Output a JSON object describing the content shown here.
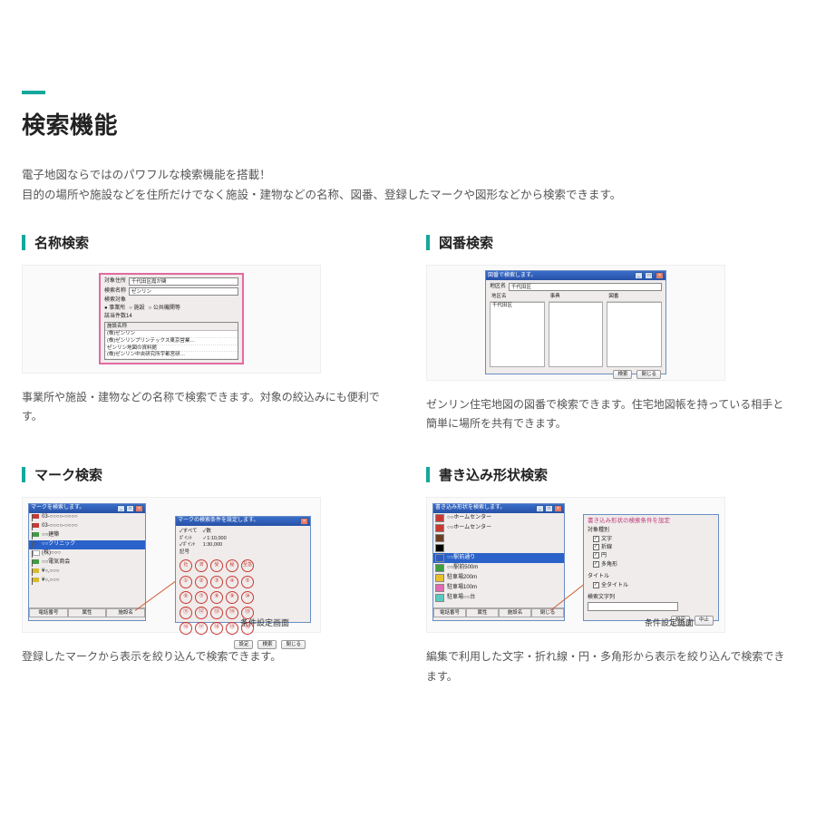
{
  "page": {
    "accent_color": "#14a89c",
    "title": "検索機能",
    "intro_line1": "電子地図ならではのパワフルな検索機能を搭載！",
    "intro_line2": "目的の場所や施設などを住所だけでなく施設・建物などの名称、図番、登録したマークや図形などから検索できます。"
  },
  "features": [
    {
      "title": "名称検索",
      "desc": "事業所や施設・建物などの名称で検索できます。対象の絞込みにも便利です。"
    },
    {
      "title": "図番検索",
      "desc": "ゼンリン住宅地図の図番で検索できます。住宅地図帳を持っている相手と簡単に場所を共有できます。"
    },
    {
      "title": "マーク検索",
      "desc": "登録したマークから表示を絞り込んで検索できます。"
    },
    {
      "title": "書き込み形状検索",
      "desc": "編集で利用した文字・折れ線・円・多角形から表示を絞り込んで検索できます。"
    }
  ],
  "f1": {
    "labels": {
      "target": "対象住所",
      "target_val": "千代田区霞が関",
      "name": "検索名称",
      "name_val": "ゼンリン",
      "type": "検索対象",
      "result_count": "該当件数14",
      "col_header": "施設名称",
      "radio_biz": "● 事業所",
      "radio_fac": "○ 施設",
      "radio_pub": "○ 公共機関等"
    },
    "results": [
      "(株)ゼンリン",
      "(株)ゼンリンプリンテックス東京営業…",
      "ゼンリン地図の資料館",
      "(株)ゼンリン中央研究所宇都宮研…"
    ]
  },
  "f2": {
    "title": "図番で検索します。",
    "area_label": "地区名",
    "area_val": "千代田区",
    "col1": "地区名",
    "col2": "事典",
    "col3": "図番",
    "items1": [
      "千代田区"
    ],
    "btn_search": "検索",
    "btn_close": "閉じる"
  },
  "f3": {
    "left_title": "マークを検索します。",
    "right_title": "マークの検索条件を設定します。",
    "caption": "条件設定画面",
    "marks": [
      {
        "color": "red",
        "text": "03-○○○○-○○○○"
      },
      {
        "color": "red",
        "text": "03-○○○○-○○○○"
      },
      {
        "color": "green",
        "text": "○○建築"
      },
      {
        "color": "blue",
        "text": "○○クリニック",
        "selected": true
      },
      {
        "color": "white",
        "text": "(株)○○○"
      },
      {
        "color": "green",
        "text": "○○電気商会"
      },
      {
        "color": "yellow",
        "text": "¥○,○○○"
      },
      {
        "color": "yellow",
        "text": "¥○,○○○"
      }
    ],
    "tabs": [
      "電話番号",
      "属性",
      "施設名"
    ],
    "opt_col1": [
      "✓すべて",
      "ﾎﾟｲﾝﾄ",
      "✓ﾎﾟｲﾝﾄ",
      "記号"
    ],
    "opt_col2": [
      "✓数",
      "✓1:10,000",
      "1:30,000"
    ],
    "samples": [
      "社",
      "済",
      "受",
      "秘",
      "至急"
    ],
    "digits": [
      "①",
      "②",
      "③",
      "④",
      "⑤",
      "⑥",
      "⑦",
      "⑧",
      "⑨",
      "⑩",
      "⑪",
      "⑫",
      "⑬",
      "⑭",
      "⑮",
      "⑯",
      "⑰",
      "⑱",
      "⑲",
      "⑳"
    ],
    "btns": [
      "設定",
      "検索",
      "閉じる"
    ]
  },
  "f4": {
    "left_title": "書き込み形状を検索します。",
    "right_pinktitle": "書き込み形状の検索条件を設定",
    "caption": "条件設定画面",
    "rows": [
      {
        "color": "#c93934",
        "text": "○○ホームセンター"
      },
      {
        "color": "#c93934",
        "text": "○○ホームセンター"
      },
      {
        "color": "#6b3f26",
        "text": ""
      },
      {
        "color": "#000000",
        "text": ""
      },
      {
        "color": "#2d5cc1",
        "text": "○○駅前通り",
        "selected": true
      },
      {
        "color": "#3f9d41",
        "text": "○○駅前500m"
      },
      {
        "color": "#e8c02c",
        "text": "駐車場200m"
      },
      {
        "color": "#e069b0",
        "text": "駐車場100m"
      },
      {
        "color": "#59c9c3",
        "text": "駐車場○○台"
      }
    ],
    "tabs": [
      "電話番号",
      "属性",
      "施設名",
      "閉じる"
    ],
    "groups": {
      "kind_h": "対象種別",
      "kinds": [
        "文字",
        "折線",
        "円",
        "多角形"
      ],
      "title_h": "タイトル",
      "title_chk": "全タイトル",
      "str_h": "検索文字列"
    },
    "btns": [
      "設定",
      "中止"
    ]
  }
}
